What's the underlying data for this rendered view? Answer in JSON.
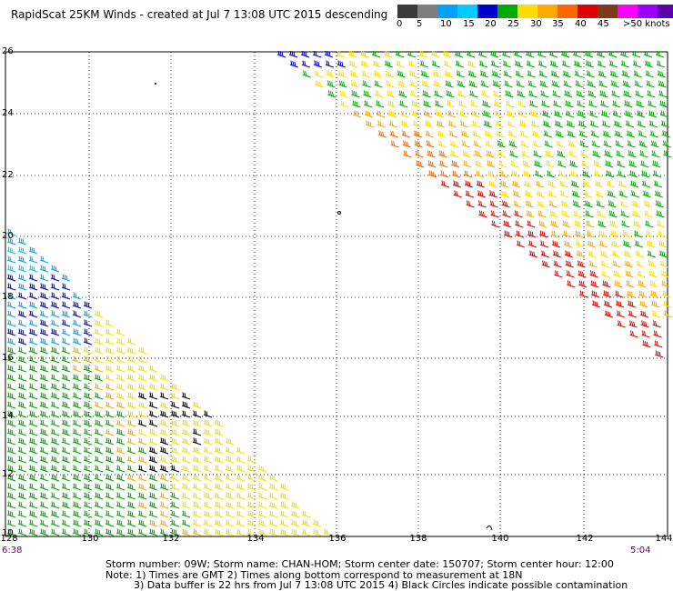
{
  "title": "RapidScat 25KM Winds - created at Jul  7 13:08 UTC 2015 descending",
  "scale": {
    "colors": [
      "#3a3a3a",
      "#7f7f7f",
      "#00a0ff",
      "#00ccff",
      "#0000cc",
      "#00aa00",
      "#ffdd00",
      "#ffaa00",
      "#ff6600",
      "#dd0000",
      "#7b3a1a",
      "#ff00ff",
      "#9900ff",
      "#5c00aa"
    ],
    "labels": [
      "0",
      "5",
      "10",
      "15",
      "20",
      "25",
      "30",
      "35",
      "40",
      "45",
      ">50 knots"
    ]
  },
  "axes": {
    "lat_labels": [
      "26",
      "24",
      "22",
      "20",
      "18",
      "16",
      "14",
      "12",
      "10"
    ],
    "lon_labels": [
      "128",
      "130",
      "132",
      "134",
      "136",
      "138",
      "140",
      "142",
      "144"
    ]
  },
  "times": {
    "left": "6:38",
    "right": "5:04"
  },
  "footer": {
    "line1": "Storm number: 09W;  Storm name: CHAN-HOM;  Storm center date: 150707;  Storm center hour: 12:00",
    "line2": "Note: 1) Times are GMT  2) Times along bottom correspond to measurement at 18N",
    "line3": "3) Data buffer is 22 hrs from Jul  7 13:08 UTC 2015  4) Black Circles indicate possible contamination"
  }
}
